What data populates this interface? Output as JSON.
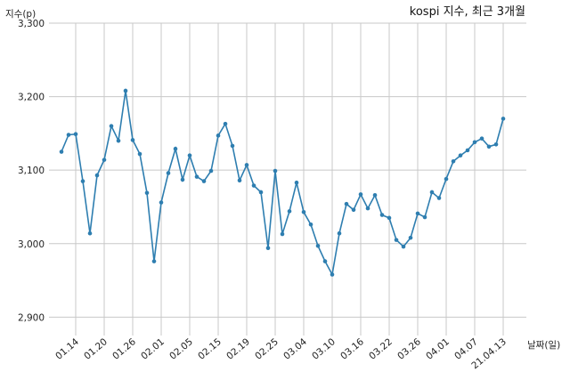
{
  "chart_data": {
    "type": "line",
    "title": "kospi 지수, 최근 3개월",
    "ylabel": "지수(p)",
    "xlabel": "날짜(일)",
    "ylim": [
      2875,
      3300
    ],
    "yticks": [
      2900,
      3000,
      3100,
      3200,
      3300
    ],
    "ytick_labels": [
      "2,900",
      "3,000",
      "3,100",
      "3,200",
      "3,300"
    ],
    "x_tick_labels": [
      "01.14",
      "01.20",
      "01.26",
      "02.01",
      "02.05",
      "02.15",
      "02.19",
      "02.25",
      "03.04",
      "03.10",
      "03.16",
      "03.22",
      "03.26",
      "04.01",
      "04.07",
      "21.04.13"
    ],
    "grid": true,
    "colors": {
      "line": "#2e7eb0",
      "grid": "#c8c8c8"
    },
    "series": [
      {
        "values": [
          3125,
          3148,
          3149,
          3085,
          3014,
          3093,
          3114,
          3160,
          3140,
          3208,
          3141,
          3122,
          3069,
          2976,
          3056,
          3096,
          3129,
          3087,
          3120,
          3091,
          3085,
          3099,
          3147,
          3163,
          3133,
          3086,
          3107,
          3079,
          3070,
          2994,
          3099,
          3013,
          3044,
          3083,
          3043,
          3026,
          2997,
          2976,
          2958,
          3014,
          3054,
          3046,
          3067,
          3048,
          3066,
          3039,
          3035,
          3005,
          2996,
          3008,
          3041,
          3036,
          3070,
          3062,
          3088,
          3112,
          3120,
          3127,
          3138,
          3143,
          3132,
          3135,
          3170
        ]
      }
    ]
  }
}
